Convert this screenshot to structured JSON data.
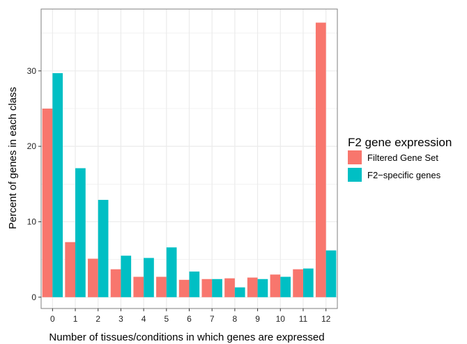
{
  "chart_data": {
    "type": "bar",
    "title": "",
    "xlabel": "Number of tissues/conditions in which genes are expressed",
    "ylabel": "Percent of genes in each class",
    "categories": [
      "0",
      "1",
      "2",
      "3",
      "4",
      "5",
      "6",
      "7",
      "8",
      "9",
      "10",
      "11",
      "12"
    ],
    "series": [
      {
        "name": "Filtered Gene Set",
        "color": "#F8766D",
        "values": [
          25.0,
          7.3,
          5.1,
          3.7,
          2.7,
          2.7,
          2.3,
          2.4,
          2.5,
          2.6,
          3.0,
          3.7,
          36.4
        ]
      },
      {
        "name": "F2−specific genes",
        "color": "#00BFC4",
        "values": [
          29.7,
          17.1,
          12.9,
          5.5,
          5.2,
          6.6,
          3.4,
          2.4,
          1.3,
          2.4,
          2.7,
          3.8,
          6.2
        ]
      }
    ],
    "yticks": [
      0,
      10,
      20,
      30
    ],
    "ylim": [
      -1.5,
      38.2
    ],
    "grid": true,
    "panel_background": "#ffffff",
    "grid_color": "#ebebeb",
    "legend": {
      "title": "F2 gene expression",
      "placement": "right"
    }
  }
}
